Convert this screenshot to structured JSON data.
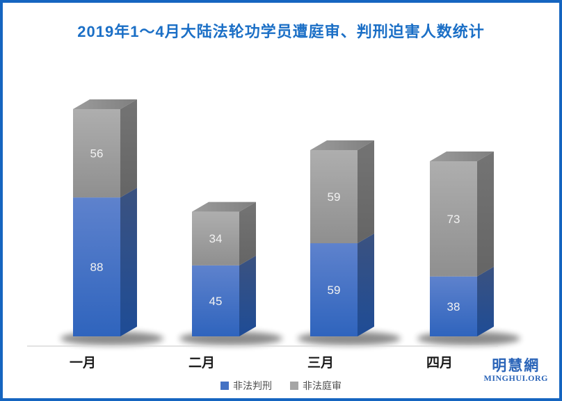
{
  "frame": {
    "border_color": "#1565c0",
    "background": "#ffffff"
  },
  "title": {
    "text": "2019年1～4月大陆法轮功学员遭庭审、判刑迫害人数统计",
    "color": "#1b6fc6"
  },
  "chart_data": {
    "type": "bar",
    "stacked": true,
    "effect": "3d",
    "title": "2019年1～4月大陆法轮功学员遭庭审、判刑迫害人数统计",
    "categories": [
      "一月",
      "二月",
      "三月",
      "四月"
    ],
    "series": [
      {
        "name": "非法判刑",
        "values": [
          88,
          45,
          59,
          38
        ],
        "color": "#4472c4"
      },
      {
        "name": "非法庭审",
        "values": [
          56,
          34,
          59,
          73
        ],
        "color": "#a5a5a5"
      }
    ],
    "totals": [
      144,
      79,
      118,
      111
    ],
    "xlabel": "",
    "ylabel": "",
    "value_labels": true,
    "legend_position": "bottom",
    "grid": false,
    "axis_line_color": "#d9d9d9",
    "value_label_color": "#f2f2f2",
    "category_label_color": "#1a1a1a",
    "face_colors": {
      "blue_front_top": "#5e82cd",
      "blue_front_bottom": "#2f64bd",
      "blue_side_top": "#3b5280",
      "blue_side_bottom": "#1e4c96",
      "gray_front_top": "#aeaeae",
      "gray_front_bottom": "#8f8f8f",
      "gray_side_top": "#747474",
      "gray_side_bottom": "#656565",
      "gray_top_light": "#9c9c9c",
      "gray_top_dark": "#7f7f7f",
      "shadow": "#000000"
    }
  },
  "legend": {
    "items": [
      {
        "label": "非法判刑",
        "color": "#4472c4"
      },
      {
        "label": "非法庭审",
        "color": "#a5a5a5"
      }
    ]
  },
  "logo": {
    "cjk": "明慧網",
    "latin": "MINGHUI.ORG",
    "color": "#2a64b8"
  }
}
